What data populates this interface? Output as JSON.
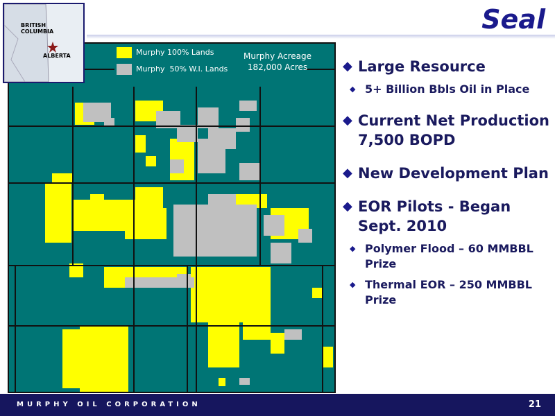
{
  "header": {
    "title": "Seal"
  },
  "inset_map": {
    "labels": [
      "BRITISH COLUMBIA",
      "ALBERTA"
    ]
  },
  "map": {
    "legend": [
      "Murphy 100% Lands",
      "Murphy  50% W.I. Lands"
    ],
    "acreage": {
      "label": "Murphy Acreage",
      "value": "182,000 Acres"
    }
  },
  "bullets": [
    {
      "text": "Large Resource",
      "subs": [
        "5+ Billion Bbls Oil in Place"
      ]
    },
    {
      "text": "Current Net Production 7,500 BOPD",
      "subs": []
    },
    {
      "text": "New Development Plan",
      "subs": []
    },
    {
      "text": "EOR Pilots - Began Sept. 2010",
      "subs": [
        "Polymer Flood – 60 MMBBL Prize",
        "Thermal EOR – 250 MMBBL Prize"
      ]
    }
  ],
  "footer": {
    "company": "MURPHY OIL CORPORATION",
    "page": "21"
  }
}
